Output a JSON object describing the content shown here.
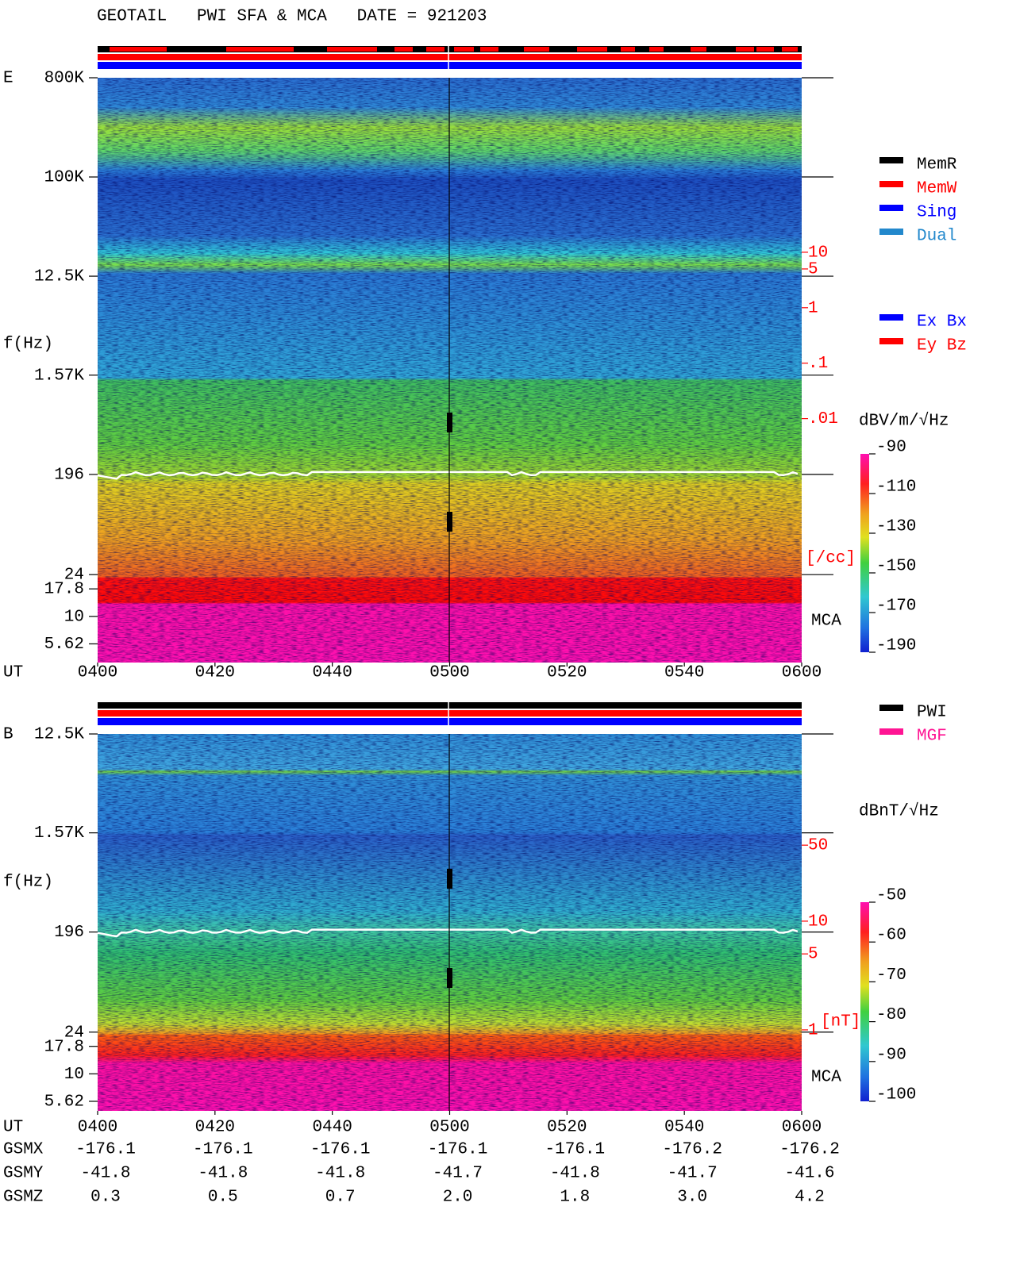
{
  "header": {
    "title": "GEOTAIL   PWI SFA & MCA   DATE = 921203"
  },
  "chart_data": [
    {
      "type": "spectrogram",
      "panel_label": "E",
      "y_label": "f(Hz)",
      "x_label": "UT",
      "log_y": true,
      "ylim": [
        3.8,
        800000
      ],
      "yticks": [
        {
          "value": 800000,
          "label": "800K"
        },
        {
          "value": 100000,
          "label": "100K"
        },
        {
          "value": 12500,
          "label": "12.5K"
        },
        {
          "value": 1570,
          "label": "1.57K"
        },
        196,
        24,
        17.8,
        10,
        5.62
      ],
      "categories": [
        "0400",
        "0420",
        "0440",
        "0500",
        "0520",
        "0540",
        "0600"
      ],
      "y2_log": true,
      "y2lim": [
        4e-07,
        14000
      ],
      "y2ticks": [
        10,
        5,
        1,
        {
          "value": 0.1,
          "label": ".1"
        },
        {
          "value": 0.01,
          "label": ".01"
        }
      ],
      "y2_label": "[/cc]",
      "mca_label": "MCA",
      "colorbar": {
        "label": "dBV/m/√Hz",
        "lim": [
          -190,
          -90
        ],
        "ticks": [
          -90,
          -110,
          -130,
          -150,
          -170,
          -190
        ]
      },
      "legend": [
        {
          "name": "MemR",
          "color": "#000000"
        },
        {
          "name": "MemW",
          "color": "#ff0000"
        },
        {
          "name": "Sing",
          "color": "#0000ff"
        },
        {
          "name": "Dual",
          "color": "#2288cc"
        }
      ],
      "legend2": [
        {
          "name": "Ex Bx",
          "color": "#0000ff"
        },
        {
          "name": "Ey Bz",
          "color": "#ff0000"
        }
      ]
    },
    {
      "type": "spectrogram",
      "panel_label": "B",
      "y_label": "f(Hz)",
      "x_label": "UT",
      "log_y": true,
      "ylim": [
        4.6,
        12500
      ],
      "yticks": [
        {
          "value": 12500,
          "label": "12.5K"
        },
        {
          "value": 1570,
          "label": "1.57K"
        },
        196,
        24,
        17.8,
        10,
        5.62
      ],
      "categories": [
        "0400",
        "0420",
        "0440",
        "0500",
        "0520",
        "0540",
        "0600"
      ],
      "y2_log": true,
      "y2lim": [
        0.18,
        527
      ],
      "y2ticks": [
        50,
        10,
        5,
        1
      ],
      "y2_label": "[nT]",
      "mca_label": "MCA",
      "colorbar": {
        "label": "dBnT/√Hz",
        "lim": [
          -100,
          -50
        ],
        "ticks": [
          -50,
          -60,
          -70,
          -80,
          -90,
          -100
        ]
      },
      "legend": [
        {
          "name": "PWI",
          "color": "#000000"
        },
        {
          "name": "MGF",
          "color": "#ff1493"
        }
      ]
    }
  ],
  "orbit": {
    "rows": [
      {
        "name": "GSMX",
        "values": [
          "-176.1",
          "-176.1",
          "-176.1",
          "-176.1",
          "-176.1",
          "-176.2",
          "-176.2"
        ]
      },
      {
        "name": "GSMY",
        "values": [
          "-41.8",
          "-41.8",
          "-41.8",
          "-41.7",
          "-41.8",
          "-41.7",
          "-41.6"
        ]
      },
      {
        "name": "GSMZ",
        "values": [
          "0.3",
          "0.5",
          "0.7",
          "2.0",
          "1.8",
          "3.0",
          "4.2"
        ]
      }
    ]
  }
}
